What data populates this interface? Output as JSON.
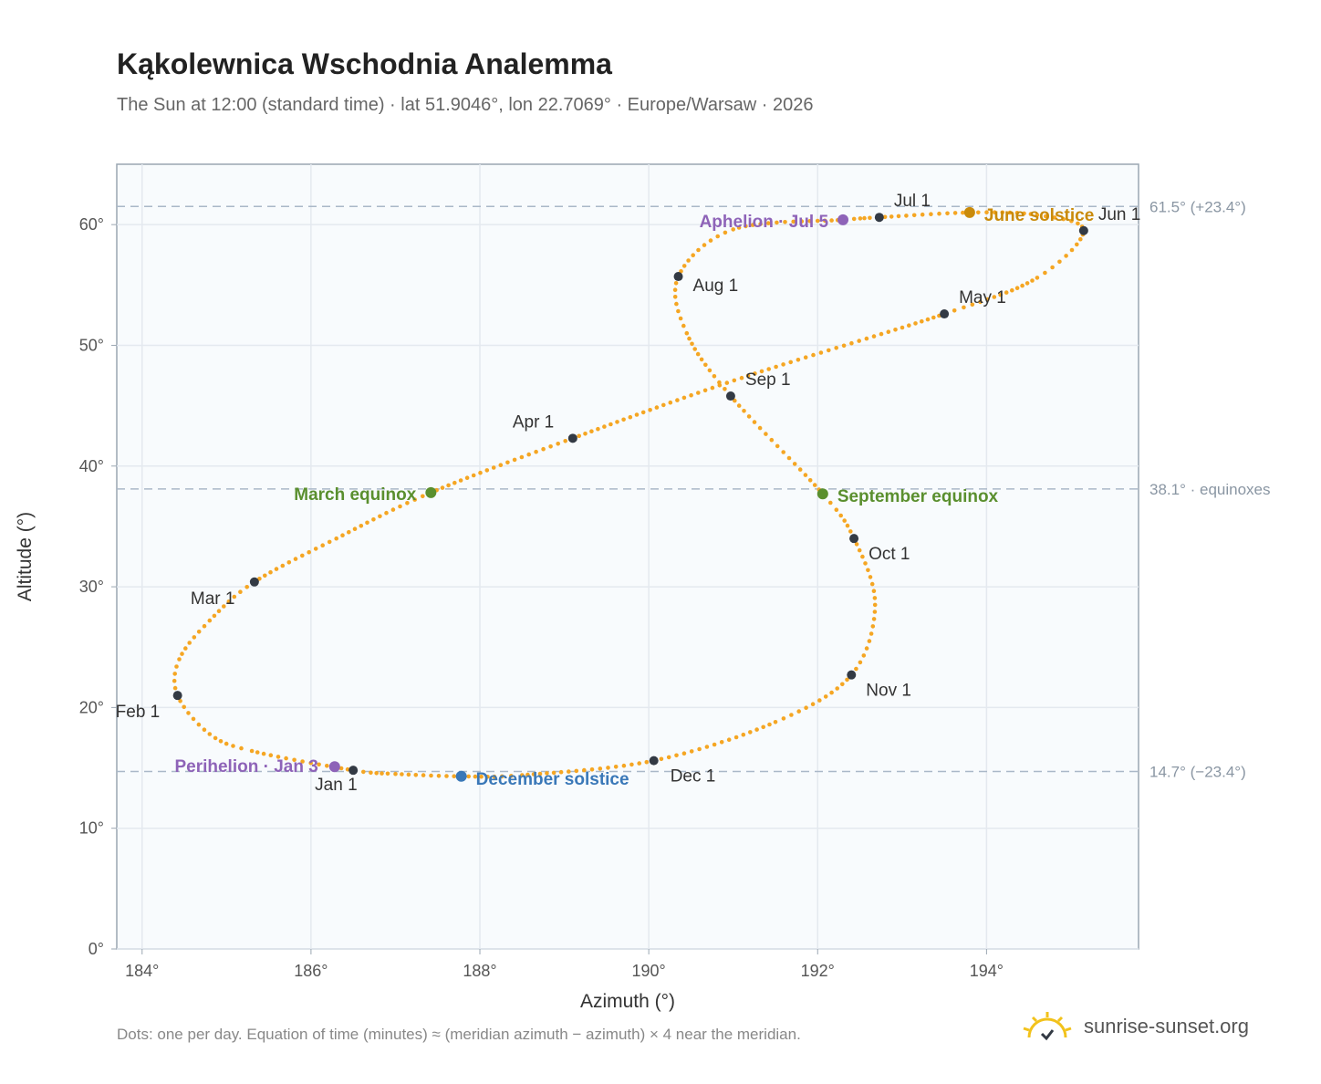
{
  "title": "Kąkolewnica Wschodnia Analemma",
  "subtitle": "The Sun at 12:00 (standard time) · lat 51.9046°, lon 22.7069° · Europe/Warsaw · 2026",
  "footnote": "Dots: one per day. Equation of time (minutes) ≈ (meridian azimuth − azimuth) × 4 near the meridian.",
  "brand": {
    "name": "sunrise-sunset.org",
    "icon": "sun-logo-icon"
  },
  "colors": {
    "curve": "#f5a623",
    "month_dot": "#333a44",
    "equinox": "#5a8f2e",
    "june_solstice": "#c98a0a",
    "december_solstice": "#3a78b8",
    "apsis": "#8e63b8",
    "reference_line": "#aab8c8",
    "plot_bg": "#f8fbfd",
    "grid": "#e4e9ef"
  },
  "chart_data": {
    "type": "scatter",
    "title": "Kąkolewnica Wschodnia Analemma",
    "subtitle": "The Sun at 12:00 (standard time) · lat 51.9046°, lon 22.7069° · Europe/Warsaw · 2026",
    "xlabel": "Azimuth (°)",
    "ylabel": "Altitude (°)",
    "xlim": [
      183.7,
      195.8
    ],
    "ylim": [
      0,
      65
    ],
    "x_ticks": [
      184,
      186,
      188,
      190,
      192,
      194
    ],
    "y_ticks": [
      0,
      10,
      20,
      30,
      40,
      50,
      60
    ],
    "x_tick_labels": [
      "184°",
      "186°",
      "188°",
      "190°",
      "192°",
      "194°"
    ],
    "y_tick_labels": [
      "0°",
      "10°",
      "20°",
      "30°",
      "40°",
      "50°",
      "60°"
    ],
    "grid": true,
    "daily_points": "one per day",
    "month_markers": [
      {
        "label": "Jan 1",
        "x": 186.5,
        "y": 14.8
      },
      {
        "label": "Feb 1",
        "x": 184.42,
        "y": 21.0
      },
      {
        "label": "Mar 1",
        "x": 185.33,
        "y": 30.4
      },
      {
        "label": "Apr 1",
        "x": 189.1,
        "y": 42.3
      },
      {
        "label": "May 1",
        "x": 193.5,
        "y": 52.6
      },
      {
        "label": "Jun 1",
        "x": 195.15,
        "y": 59.5
      },
      {
        "label": "Jul 1",
        "x": 192.73,
        "y": 60.6
      },
      {
        "label": "Aug 1",
        "x": 190.35,
        "y": 55.7
      },
      {
        "label": "Sep 1",
        "x": 190.97,
        "y": 45.8
      },
      {
        "label": "Oct 1",
        "x": 192.43,
        "y": 34.0
      },
      {
        "label": "Nov 1",
        "x": 192.4,
        "y": 22.7
      },
      {
        "label": "Dec 1",
        "x": 190.06,
        "y": 15.6
      }
    ],
    "events": [
      {
        "label": "March equinox",
        "x": 187.42,
        "y": 37.8,
        "kind": "equinox"
      },
      {
        "label": "June solstice",
        "x": 193.8,
        "y": 61.0,
        "kind": "june_solstice"
      },
      {
        "label": "September equinox",
        "x": 192.06,
        "y": 37.7,
        "kind": "equinox"
      },
      {
        "label": "December solstice",
        "x": 187.78,
        "y": 14.3,
        "kind": "december_solstice"
      },
      {
        "label": "Perihelion · Jan 3",
        "x": 186.28,
        "y": 15.1,
        "kind": "apsis"
      },
      {
        "label": "Aphelion · Jul 5",
        "x": 192.3,
        "y": 60.4,
        "kind": "apsis"
      }
    ],
    "reference_lines": [
      {
        "y": 61.5,
        "label": "61.5° (+23.4°)"
      },
      {
        "y": 38.1,
        "label": "38.1° · equinoxes"
      },
      {
        "y": 14.7,
        "label": "14.7° (−23.4°)"
      }
    ],
    "curve_path": [
      [
        186.5,
        14.8
      ],
      [
        185.3,
        16.4
      ],
      [
        184.8,
        17.8
      ],
      [
        184.42,
        21.0
      ],
      [
        184.44,
        24.0
      ],
      [
        184.8,
        27.2
      ],
      [
        185.33,
        30.4
      ],
      [
        186.3,
        34.0
      ],
      [
        187.42,
        37.8
      ],
      [
        189.1,
        42.3
      ],
      [
        191.1,
        47.3
      ],
      [
        193.5,
        52.6
      ],
      [
        194.6,
        55.6
      ],
      [
        195.15,
        59.5
      ],
      [
        194.6,
        60.8
      ],
      [
        193.8,
        61.0
      ],
      [
        192.73,
        60.6
      ],
      [
        192.3,
        60.4
      ],
      [
        191.0,
        59.6
      ],
      [
        190.35,
        55.7
      ],
      [
        190.45,
        51.0
      ],
      [
        190.97,
        45.8
      ],
      [
        192.06,
        37.7
      ],
      [
        192.43,
        34.0
      ],
      [
        192.68,
        28.5
      ],
      [
        192.4,
        22.7
      ],
      [
        191.5,
        18.8
      ],
      [
        190.06,
        15.6
      ],
      [
        188.5,
        14.4
      ],
      [
        187.78,
        14.3
      ],
      [
        187.0,
        14.5
      ],
      [
        186.5,
        14.8
      ]
    ]
  }
}
